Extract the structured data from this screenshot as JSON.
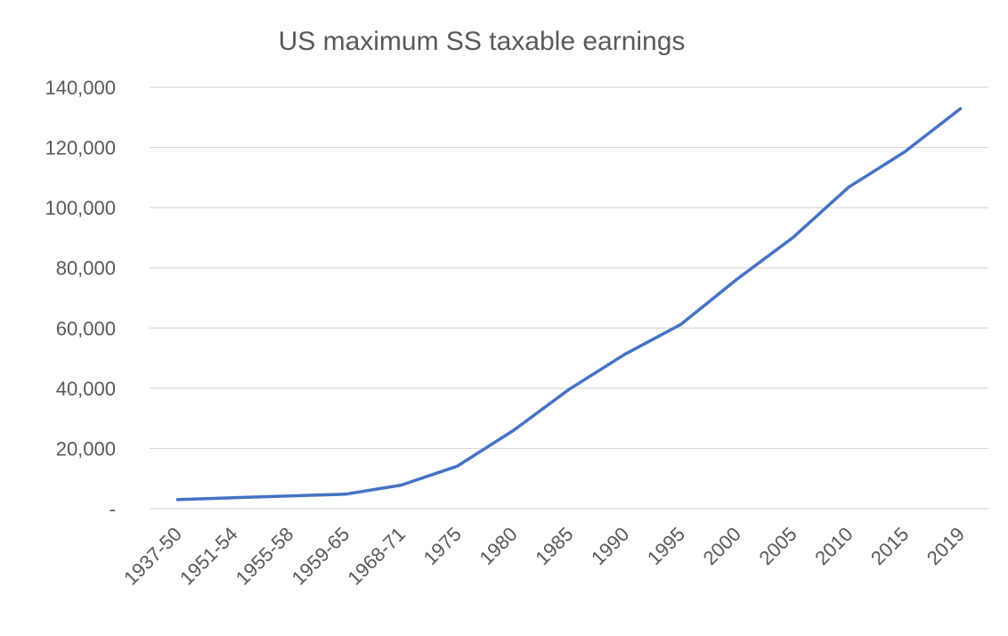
{
  "chart_data": {
    "type": "line",
    "title": "US maximum SS taxable earnings",
    "xlabel": "",
    "ylabel": "",
    "categories": [
      "1937-50",
      "1951-54",
      "1955-58",
      "1959-65",
      "1968-71",
      "1975",
      "1980",
      "1985",
      "1990",
      "1995",
      "2000",
      "2005",
      "2010",
      "2015",
      "2019"
    ],
    "series": [
      {
        "values": [
          3000,
          3600,
          4200,
          4800,
          7800,
          14100,
          25900,
          39600,
          51300,
          61200,
          76200,
          90000,
          106800,
          118500,
          132900
        ]
      }
    ],
    "yticks": [
      {
        "value": 0,
        "label": "-"
      },
      {
        "value": 20000,
        "label": "20,000"
      },
      {
        "value": 40000,
        "label": "40,000"
      },
      {
        "value": 60000,
        "label": "60,000"
      },
      {
        "value": 80000,
        "label": "80,000"
      },
      {
        "value": 100000,
        "label": "100,000"
      },
      {
        "value": 120000,
        "label": "120,000"
      },
      {
        "value": 140000,
        "label": "140,000"
      }
    ],
    "ylim": [
      0,
      140000
    ],
    "grid": true,
    "legend": "none",
    "colors": {
      "line": "#4472C4",
      "grid": "#D9D9D9",
      "text": "#595959"
    }
  }
}
